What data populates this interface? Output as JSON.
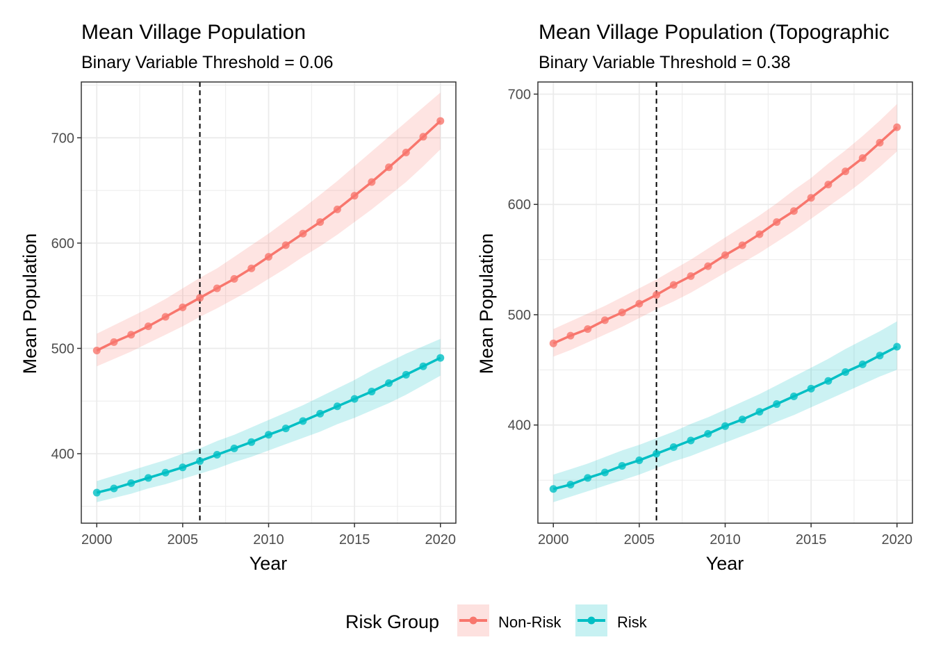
{
  "legend": {
    "title": "Risk Group",
    "position": "bottom",
    "items": [
      {
        "label": "Non-Risk",
        "color": "#F8766D"
      },
      {
        "label": "Risk",
        "color": "#00BFC4"
      }
    ]
  },
  "chart_data": [
    {
      "type": "line",
      "title": "Mean Village Population",
      "subtitle": "Binary Variable Threshold = 0.06",
      "xlabel": "Year",
      "ylabel": "Mean Population",
      "xlim": [
        1999.1,
        2020.9
      ],
      "ylim": [
        334,
        753
      ],
      "xticks": [
        2000,
        2005,
        2010,
        2015,
        2020
      ],
      "yticks": [
        400,
        500,
        600,
        700
      ],
      "grid": true,
      "vline": 2006,
      "x": [
        2000,
        2001,
        2002,
        2003,
        2004,
        2005,
        2006,
        2007,
        2008,
        2009,
        2010,
        2011,
        2012,
        2013,
        2014,
        2015,
        2016,
        2017,
        2018,
        2019,
        2020
      ],
      "series": [
        {
          "name": "Non-Risk",
          "color": "#F8766D",
          "values": [
            498,
            506,
            513,
            521,
            530,
            539,
            548,
            557,
            566,
            576,
            587,
            598,
            609,
            620,
            632,
            645,
            658,
            672,
            686,
            701,
            716
          ],
          "lower": [
            483,
            490,
            497,
            505,
            513,
            521,
            530,
            538,
            547,
            556,
            566,
            576,
            587,
            597,
            608,
            620,
            632,
            645,
            658,
            673,
            689
          ],
          "upper": [
            514,
            522,
            530,
            538,
            547,
            557,
            567,
            576,
            587,
            598,
            609,
            621,
            633,
            646,
            659,
            673,
            687,
            701,
            715,
            729,
            743
          ]
        },
        {
          "name": "Risk",
          "color": "#00BFC4",
          "values": [
            363,
            367,
            372,
            377,
            382,
            387,
            393,
            399,
            405,
            411,
            418,
            424,
            431,
            438,
            445,
            452,
            459,
            467,
            475,
            483,
            491
          ],
          "lower": [
            354,
            358,
            362,
            367,
            371,
            376,
            381,
            386,
            392,
            397,
            403,
            409,
            415,
            421,
            428,
            434,
            441,
            448,
            456,
            465,
            474
          ],
          "upper": [
            374,
            379,
            384,
            389,
            394,
            400,
            405,
            412,
            418,
            425,
            432,
            439,
            446,
            454,
            462,
            470,
            479,
            487,
            495,
            502,
            509
          ]
        }
      ]
    },
    {
      "type": "line",
      "title": "Mean Village Population (Topographic",
      "subtitle": "Binary Variable Threshold = 0.38",
      "xlabel": "Year",
      "ylabel": "Mean Population",
      "xlim": [
        1999.1,
        2020.9
      ],
      "ylim": [
        311,
        711
      ],
      "xticks": [
        2000,
        2005,
        2010,
        2015,
        2020
      ],
      "yticks": [
        400,
        500,
        600,
        700
      ],
      "grid": true,
      "vline": 2006,
      "x": [
        2000,
        2001,
        2002,
        2003,
        2004,
        2005,
        2006,
        2007,
        2008,
        2009,
        2010,
        2011,
        2012,
        2013,
        2014,
        2015,
        2016,
        2017,
        2018,
        2019,
        2020
      ],
      "series": [
        {
          "name": "Non-Risk",
          "color": "#F8766D",
          "values": [
            474,
            481,
            487,
            495,
            502,
            510,
            518,
            527,
            535,
            544,
            554,
            563,
            573,
            584,
            594,
            606,
            618,
            630,
            642,
            656,
            670
          ],
          "lower": [
            462,
            468,
            475,
            482,
            489,
            497,
            505,
            512,
            520,
            529,
            538,
            547,
            556,
            566,
            576,
            587,
            598,
            609,
            621,
            634,
            648
          ],
          "upper": [
            487,
            494,
            501,
            508,
            516,
            524,
            532,
            541,
            550,
            560,
            570,
            580,
            590,
            601,
            613,
            624,
            637,
            649,
            662,
            676,
            691
          ]
        },
        {
          "name": "Risk",
          "color": "#00BFC4",
          "values": [
            342,
            346,
            352,
            357,
            363,
            368,
            374,
            380,
            386,
            392,
            399,
            405,
            412,
            419,
            426,
            433,
            440,
            448,
            455,
            463,
            471
          ],
          "lower": [
            330,
            335,
            340,
            345,
            350,
            355,
            361,
            367,
            372,
            378,
            384,
            390,
            396,
            403,
            409,
            416,
            423,
            430,
            437,
            444,
            450
          ],
          "upper": [
            355,
            360,
            365,
            371,
            377,
            382,
            388,
            394,
            401,
            407,
            414,
            421,
            428,
            436,
            444,
            452,
            460,
            469,
            477,
            485,
            494
          ]
        }
      ]
    }
  ]
}
